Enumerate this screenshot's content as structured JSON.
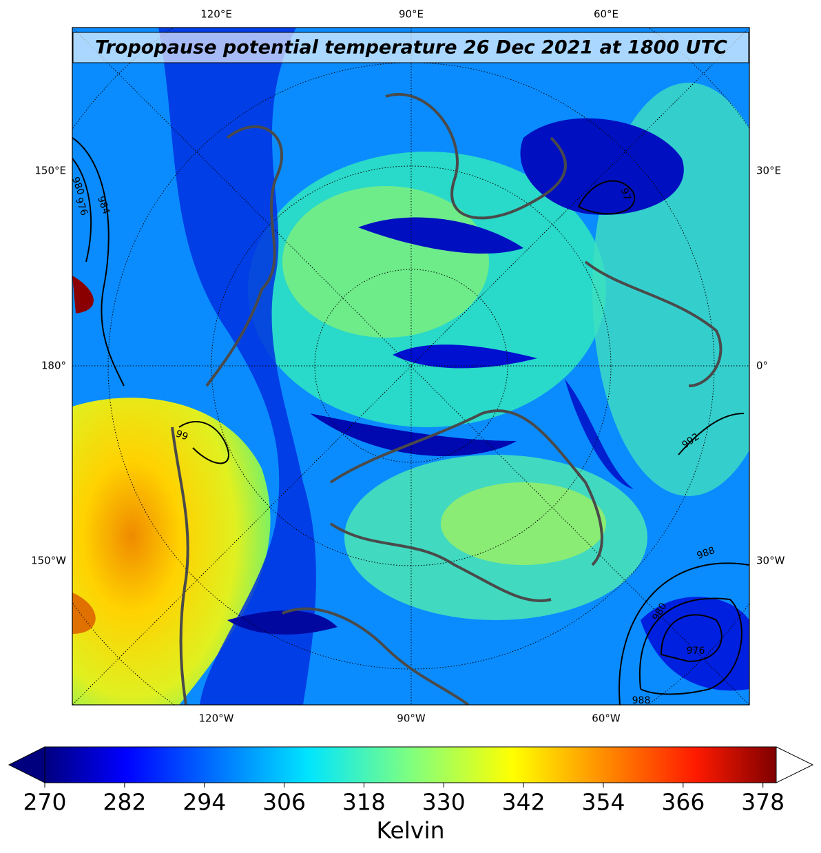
{
  "map": {
    "title": "Tropopause potential temperature 26 Dec 2021 at 1800 UTC",
    "top_labels": [
      "120°E",
      "90°E",
      "60°E"
    ],
    "left_labels": [
      "150°E",
      "180°",
      "150°W"
    ],
    "right_labels": [
      "30°E",
      "0°",
      "30°W"
    ],
    "bottom_labels": [
      "120°W",
      "90°W",
      "60°W"
    ],
    "contour_labels": [
      "980",
      "976",
      "984",
      "97",
      "99",
      "992",
      "988",
      "980",
      "976",
      "988"
    ],
    "colorbar": {
      "label": "Kelvin",
      "lim": [
        270,
        380
      ],
      "ticks": [
        270,
        282,
        294,
        306,
        318,
        330,
        342,
        354,
        366,
        378
      ]
    }
  }
}
